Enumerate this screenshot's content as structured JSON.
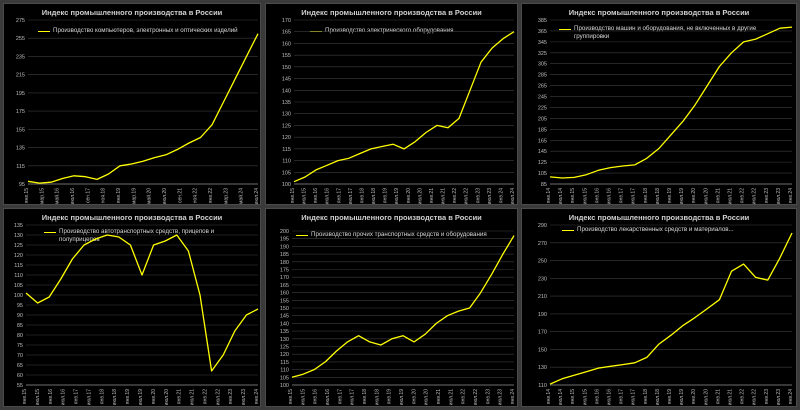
{
  "chart_data": [
    {
      "type": "line",
      "title": "Индекс промышленного производства в России",
      "series": [
        {
          "name": "Производство компьютеров, электронных и оптических изделий"
        }
      ],
      "yticks": [
        95,
        115,
        135,
        155,
        175,
        195,
        215,
        235,
        255,
        275
      ],
      "ylim": [
        95,
        275
      ],
      "xticks": [
        "янв.15",
        "мар.15",
        "май.16",
        "июл.16",
        "сен.17",
        "ноя.18",
        "янв.19",
        "мар.19",
        "май.20",
        "июл.20",
        "сен.21",
        "ноя.22",
        "янв.22",
        "мар.23",
        "май.24",
        "июл.24"
      ],
      "x": [
        0,
        0.5,
        1,
        1.5,
        2,
        2.5,
        3,
        3.5,
        4,
        4.5,
        5,
        5.5,
        6,
        6.5,
        7,
        7.5,
        8,
        8.5,
        9,
        9.5,
        10
      ],
      "values": [
        98,
        96,
        97,
        101,
        104,
        103,
        100,
        106,
        115,
        117,
        120,
        124,
        127,
        133,
        140,
        146,
        160,
        185,
        210,
        235,
        260
      ],
      "color": "#ffff00"
    },
    {
      "type": "line",
      "title": "Индекс промышленного производства в России",
      "series": [
        {
          "name": "Производство электрического оборудования"
        }
      ],
      "yticks": [
        100,
        105,
        110,
        115,
        120,
        125,
        130,
        135,
        140,
        145,
        150,
        155,
        160,
        165,
        170
      ],
      "ylim": [
        100,
        170
      ],
      "xticks": [
        "янв.15",
        "июл.15",
        "янв.16",
        "июл.16",
        "янв.17",
        "июл.17",
        "янв.18",
        "июл.18",
        "янв.19",
        "июл.19",
        "янв.20",
        "июл.20",
        "янв.21",
        "июл.21",
        "янв.22",
        "июл.22",
        "янв.23",
        "июл.23",
        "янв.24",
        "июл.24"
      ],
      "x": [
        0,
        0.5,
        1,
        1.5,
        2,
        2.5,
        3,
        3.5,
        4,
        4.5,
        5,
        5.5,
        6,
        6.5,
        7,
        7.5,
        8,
        8.5,
        9,
        9.5,
        10
      ],
      "values": [
        101,
        103,
        106,
        108,
        110,
        111,
        113,
        115,
        116,
        117,
        115,
        118,
        122,
        125,
        124,
        128,
        140,
        152,
        158,
        162,
        165
      ],
      "color": "#ffff00"
    },
    {
      "type": "line",
      "title": "Индекс промышленного производства в России",
      "series": [
        {
          "name": "Производство машин и оборудования, не включенных в другие группировки"
        }
      ],
      "yticks": [
        85,
        105,
        125,
        145,
        165,
        185,
        205,
        225,
        245,
        265,
        285,
        305,
        325,
        345,
        365,
        385
      ],
      "ylim": [
        85,
        385
      ],
      "xticks": [
        "янв.14",
        "июл.14",
        "янв.15",
        "июл.15",
        "янв.16",
        "июл.16",
        "янв.17",
        "июл.17",
        "янв.18",
        "июл.18",
        "янв.19",
        "июл.19",
        "янв.20",
        "июл.20",
        "янв.21",
        "июл.21",
        "янв.22",
        "июл.22",
        "янв.23",
        "июл.23",
        "янв.24"
      ],
      "x": [
        0,
        0.5,
        1,
        1.5,
        2,
        2.5,
        3,
        3.5,
        4,
        4.5,
        5,
        5.5,
        6,
        6.5,
        7,
        7.5,
        8,
        8.5,
        9,
        9.5,
        10
      ],
      "values": [
        98,
        96,
        97,
        102,
        110,
        115,
        118,
        120,
        132,
        150,
        175,
        200,
        230,
        265,
        300,
        325,
        345,
        350,
        360,
        370,
        372
      ],
      "color": "#ffff00"
    },
    {
      "type": "line",
      "title": "Индекс промышленного производства в России",
      "series": [
        {
          "name": "Производство автотранспортных средств, прицепов и полуприцепов"
        }
      ],
      "yticks": [
        55,
        60,
        65,
        70,
        75,
        80,
        85,
        90,
        95,
        100,
        105,
        110,
        115,
        120,
        125,
        130,
        135
      ],
      "ylim": [
        55,
        135
      ],
      "xticks": [
        "янв.15",
        "июл.15",
        "янв.16",
        "июл.16",
        "янв.17",
        "июл.17",
        "янв.18",
        "июл.18",
        "янв.19",
        "июл.19",
        "янв.20",
        "июл.20",
        "янв.21",
        "июл.21",
        "янв.22",
        "июл.22",
        "янв.23",
        "июл.23",
        "янв.24"
      ],
      "x": [
        0,
        0.5,
        1,
        1.5,
        2,
        2.5,
        3,
        3.5,
        4,
        4.5,
        5,
        5.5,
        6,
        6.5,
        7,
        7.5,
        8,
        8.5,
        9,
        9.5,
        10
      ],
      "values": [
        101,
        96,
        99,
        108,
        118,
        125,
        128,
        130,
        129,
        125,
        110,
        125,
        127,
        130,
        122,
        100,
        62,
        70,
        82,
        90,
        93
      ],
      "color": "#ffff00"
    },
    {
      "type": "line",
      "title": "Индекс промышленного производства в России",
      "series": [
        {
          "name": "Производство прочих транспортных средств и оборудования"
        }
      ],
      "yticks": [
        100,
        105,
        110,
        115,
        120,
        125,
        130,
        135,
        140,
        145,
        150,
        155,
        160,
        165,
        170,
        175,
        180,
        185,
        190,
        195,
        200
      ],
      "ylim": [
        100,
        200
      ],
      "xticks": [
        "янв.15",
        "июл.15",
        "янв.16",
        "июл.16",
        "янв.17",
        "июл.17",
        "янв.18",
        "июл.18",
        "янв.19",
        "июл.19",
        "янв.20",
        "июл.20",
        "янв.21",
        "июл.21",
        "янв.22",
        "июл.22",
        "янв.23",
        "июл.23",
        "янв.24"
      ],
      "x": [
        0,
        0.5,
        1,
        1.5,
        2,
        2.5,
        3,
        3.5,
        4,
        4.5,
        5,
        5.5,
        6,
        6.5,
        7,
        7.5,
        8,
        8.5,
        9,
        9.5,
        10
      ],
      "values": [
        105,
        107,
        110,
        115,
        122,
        128,
        132,
        128,
        126,
        130,
        132,
        128,
        133,
        140,
        145,
        148,
        150,
        160,
        172,
        185,
        197
      ],
      "color": "#ffff00"
    },
    {
      "type": "line",
      "title": "Индекс промышленного производства в России",
      "series": [
        {
          "name": "Производство лекарственных средств и материалов..."
        }
      ],
      "yticks": [
        110,
        130,
        150,
        170,
        190,
        210,
        230,
        250,
        270,
        290
      ],
      "ylim": [
        110,
        290
      ],
      "xticks": [
        "янв.14",
        "июл.14",
        "янв.15",
        "июл.15",
        "янв.16",
        "июл.16",
        "янв.17",
        "июл.17",
        "янв.18",
        "июл.18",
        "янв.19",
        "июл.19",
        "янв.20",
        "июл.20",
        "янв.21",
        "июл.21",
        "янв.22",
        "июл.22",
        "янв.23",
        "июл.23",
        "янв.24"
      ],
      "x": [
        0,
        0.5,
        1,
        1.5,
        2,
        2.5,
        3,
        3.5,
        4,
        4.5,
        5,
        5.5,
        6,
        6.5,
        7,
        7.5,
        8,
        8.5,
        9,
        9.5,
        10
      ],
      "values": [
        111,
        117,
        121,
        125,
        129,
        131,
        133,
        135,
        141,
        156,
        166,
        177,
        186,
        196,
        206,
        238,
        246,
        231,
        228,
        253,
        281
      ],
      "color": "#ffff00"
    }
  ]
}
